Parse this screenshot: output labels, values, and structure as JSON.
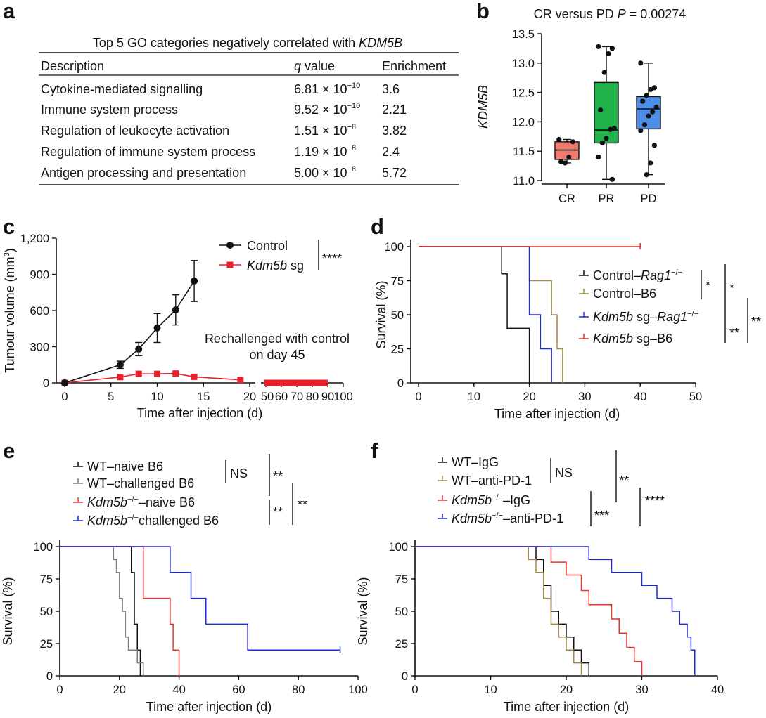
{
  "panel_labels": [
    "a",
    "b",
    "c",
    "d",
    "e",
    "f"
  ],
  "table": {
    "title_prefix": "Top 5 GO categories negatively correlated with ",
    "title_gene": "KDM5B",
    "headers": {
      "description": "Description",
      "q_italic": "q",
      "q_rest": " value",
      "enrichment": "Enrichment"
    },
    "times": "× 10",
    "rows": [
      {
        "description": "Cytokine-mediated signalling",
        "q_mant": "6.81",
        "q_exp": "−10",
        "enrichment": "3.6"
      },
      {
        "description": "Immune system process",
        "q_mant": "9.52",
        "q_exp": "−10",
        "enrichment": "2.21"
      },
      {
        "description": "Regulation of leukocyte activation",
        "q_mant": "1.51",
        "q_exp": "−8",
        "enrichment": "3.82"
      },
      {
        "description": "Regulation of immune system process",
        "q_mant": "1.19",
        "q_exp": "−8",
        "enrichment": "2.4"
      },
      {
        "description": "Antigen processing and presentation",
        "q_mant": "5.00",
        "q_exp": "−8",
        "enrichment": "5.72"
      }
    ]
  },
  "chart_data": [
    {
      "panel": "b",
      "type": "box",
      "title_prefix": "CR versus PD ",
      "title_p": "P",
      "title_suffix": " = 0.00274",
      "ylabel": "KDM5B",
      "ylim": [
        11.0,
        13.5
      ],
      "yticks": [
        "11.0",
        "11.5",
        "12.0",
        "12.5",
        "13.0",
        "13.5"
      ],
      "ytick_values": [
        11.0,
        11.5,
        12.0,
        12.5,
        13.0,
        13.5
      ],
      "categories": [
        "CR",
        "PR",
        "PD"
      ],
      "colors": [
        "#f07a6e",
        "#22b34a",
        "#4d8fe8"
      ],
      "boxes": [
        {
          "min": 11.3,
          "q1": 11.36,
          "median": 11.52,
          "q3": 11.66,
          "max": 11.7
        },
        {
          "min": 11.02,
          "q1": 11.64,
          "median": 11.86,
          "q3": 12.67,
          "max": 13.28
        },
        {
          "min": 11.1,
          "q1": 11.88,
          "median": 12.22,
          "q3": 12.43,
          "max": 13.0
        }
      ],
      "points": [
        [
          11.7,
          11.66,
          11.4,
          11.3,
          11.32
        ],
        [
          13.28,
          13.25,
          13.16,
          12.84,
          12.2,
          11.89,
          11.87,
          11.72,
          11.64,
          11.4,
          11.02
        ],
        [
          13.0,
          12.58,
          12.55,
          12.45,
          12.35,
          12.25,
          12.17,
          12.1,
          11.95,
          11.85,
          11.6,
          11.3,
          11.1
        ]
      ]
    },
    {
      "panel": "c",
      "type": "line",
      "ylabel_text": "Tumour volume (mm",
      "ylabel_sup": "3",
      "xlabel": "Time after injection (d)",
      "ylim": [
        0,
        1200
      ],
      "yticks": [
        "0",
        "300",
        "600",
        "900",
        "1,200"
      ],
      "ytick_values": [
        0,
        300,
        600,
        900,
        1200
      ],
      "xticks_left": [
        "0",
        "5",
        "10",
        "15",
        "20"
      ],
      "xticks_left_values": [
        0,
        5,
        10,
        15,
        20
      ],
      "xticks_right": [
        "50",
        "60",
        "70",
        "80",
        "90",
        "100"
      ],
      "xticks_right_values": [
        50,
        60,
        70,
        80,
        90,
        100
      ],
      "series": [
        {
          "name": "Control",
          "x": [
            0,
            6,
            8,
            10,
            12,
            14
          ],
          "values": [
            0,
            150,
            280,
            455,
            605,
            845
          ],
          "errors": [
            0,
            30,
            55,
            120,
            125,
            170
          ]
        },
        {
          "name_italic": "Kdm5b",
          "name_rest": " sg",
          "x": [
            0,
            6,
            8,
            10,
            12,
            14,
            19,
            51,
            53,
            55,
            57,
            59,
            62,
            64,
            66,
            68,
            70,
            72,
            75,
            78,
            80,
            84,
            86,
            88
          ],
          "values": [
            0,
            48,
            75,
            75,
            78,
            50,
            25,
            0,
            0,
            0,
            0,
            0,
            0,
            0,
            0,
            0,
            0,
            0,
            0,
            0,
            0,
            0,
            0,
            0
          ]
        }
      ],
      "significance": "****",
      "annotation_line1": "Rechallenged with control",
      "annotation_line2": "on day 45"
    },
    {
      "panel": "d",
      "type": "survival",
      "ylabel": "Survival (%)",
      "xlabel": "Time after injection (d)",
      "xlim": [
        0,
        50
      ],
      "ylim": [
        0,
        100
      ],
      "xticks": [
        "0",
        "10",
        "20",
        "30",
        "40",
        "50"
      ],
      "xtick_values": [
        0,
        10,
        20,
        30,
        40,
        50
      ],
      "yticks": [
        "0",
        "25",
        "50",
        "75",
        "100"
      ],
      "ytick_values": [
        0,
        25,
        50,
        75,
        100
      ],
      "series": [
        {
          "name_parts": [
            [
              "Control–",
              false
            ],
            [
              "Rag1",
              true
            ],
            [
              "−/−",
              false,
              "sup"
            ]
          ],
          "color": "#111111",
          "steps": [
            [
              0,
              100
            ],
            [
              15,
              80
            ],
            [
              16,
              40
            ],
            [
              20,
              0
            ]
          ]
        },
        {
          "name_parts": [
            [
              "Control–B6",
              false
            ]
          ],
          "color": "#a08a45",
          "steps": [
            [
              0,
              100
            ],
            [
              20,
              75
            ],
            [
              24,
              50
            ],
            [
              25,
              25
            ],
            [
              26,
              0
            ]
          ]
        },
        {
          "name_parts": [
            [
              "Kdm5b",
              true
            ],
            [
              " sg–",
              false
            ],
            [
              "Rag1",
              true
            ],
            [
              "−/−",
              false,
              "sup"
            ]
          ],
          "color": "#1f2ad8",
          "steps": [
            [
              0,
              100
            ],
            [
              20,
              50
            ],
            [
              22,
              25
            ],
            [
              24,
              0
            ]
          ]
        },
        {
          "name_parts": [
            [
              "Kdm5b",
              true
            ],
            [
              " sg–B6",
              false
            ]
          ],
          "color": "#e8322a",
          "steps": [
            [
              0,
              100
            ],
            [
              40,
              100
            ]
          ]
        }
      ],
      "significance": [
        "*",
        "*",
        "**",
        "**"
      ]
    },
    {
      "panel": "e",
      "type": "survival",
      "ylabel": "Survival (%)",
      "xlabel": "Time after injection (d)",
      "xlim": [
        0,
        100
      ],
      "ylim": [
        0,
        100
      ],
      "xticks": [
        "0",
        "20",
        "40",
        "60",
        "80",
        "100"
      ],
      "xtick_values": [
        0,
        20,
        40,
        60,
        80,
        100
      ],
      "yticks": [
        "0",
        "25",
        "50",
        "75",
        "100"
      ],
      "ytick_values": [
        0,
        25,
        50,
        75,
        100
      ],
      "series": [
        {
          "name_parts": [
            [
              "WT–naive B6",
              false
            ]
          ],
          "color": "#111111",
          "steps": [
            [
              0,
              100
            ],
            [
              24,
              80
            ],
            [
              25,
              40
            ],
            [
              26,
              20
            ],
            [
              27,
              0
            ]
          ]
        },
        {
          "name_parts": [
            [
              "WT–challenged B6",
              false
            ]
          ],
          "color": "#7d7d7d",
          "steps": [
            [
              0,
              100
            ],
            [
              18,
              90
            ],
            [
              19,
              80
            ],
            [
              20,
              60
            ],
            [
              21,
              50
            ],
            [
              22,
              30
            ],
            [
              23,
              20
            ],
            [
              26,
              10
            ],
            [
              28,
              0
            ]
          ]
        },
        {
          "name_parts": [
            [
              "Kdm5b",
              true
            ],
            [
              "−/−",
              false,
              "sup"
            ],
            [
              "–naive B6",
              false
            ]
          ],
          "color": "#e8322a",
          "steps": [
            [
              0,
              100
            ],
            [
              28,
              60
            ],
            [
              37,
              40
            ],
            [
              38,
              20
            ],
            [
              40,
              0
            ]
          ]
        },
        {
          "name_parts": [
            [
              "Kdm5b",
              true
            ],
            [
              "−/−",
              false,
              "sup"
            ],
            [
              "challenged B6",
              false
            ]
          ],
          "color": "#1f2ad8",
          "steps": [
            [
              0,
              100
            ],
            [
              37,
              80
            ],
            [
              44,
              60
            ],
            [
              49,
              40
            ],
            [
              63,
              20
            ],
            [
              94,
              20
            ]
          ]
        }
      ],
      "significance": [
        "NS",
        "**",
        "**",
        "**"
      ]
    },
    {
      "panel": "f",
      "type": "survival",
      "ylabel": "Survival (%)",
      "xlabel": "Time after injection (d)",
      "xlim": [
        0,
        40
      ],
      "ylim": [
        0,
        100
      ],
      "xticks": [
        "0",
        "10",
        "20",
        "30",
        "40"
      ],
      "xtick_values": [
        0,
        10,
        20,
        30,
        40
      ],
      "yticks": [
        "0",
        "25",
        "50",
        "75",
        "100"
      ],
      "ytick_values": [
        0,
        25,
        50,
        75,
        100
      ],
      "series": [
        {
          "name_parts": [
            [
              "WT–IgG",
              false
            ]
          ],
          "color": "#111111",
          "steps": [
            [
              0,
              100
            ],
            [
              16,
              90
            ],
            [
              17,
              70
            ],
            [
              18,
              50
            ],
            [
              19,
              40
            ],
            [
              20,
              30
            ],
            [
              21,
              20
            ],
            [
              22,
              10
            ],
            [
              23,
              0
            ]
          ]
        },
        {
          "name_parts": [
            [
              "WT–anti-PD-1",
              false
            ]
          ],
          "color": "#a08a45",
          "steps": [
            [
              0,
              100
            ],
            [
              15,
              90
            ],
            [
              16,
              80
            ],
            [
              17,
              60
            ],
            [
              18,
              40
            ],
            [
              19,
              30
            ],
            [
              20,
              20
            ],
            [
              21,
              10
            ],
            [
              22,
              0
            ]
          ]
        },
        {
          "name_parts": [
            [
              "Kdm5b",
              true
            ],
            [
              "−/−",
              false,
              "sup"
            ],
            [
              "–IgG",
              false
            ]
          ],
          "color": "#e8322a",
          "steps": [
            [
              0,
              100
            ],
            [
              18,
              88
            ],
            [
              20,
              78
            ],
            [
              22,
              66
            ],
            [
              23,
              55
            ],
            [
              26,
              44
            ],
            [
              27,
              33
            ],
            [
              28,
              22
            ],
            [
              29,
              11
            ],
            [
              30,
              0
            ]
          ]
        },
        {
          "name_parts": [
            [
              "Kdm5b",
              true
            ],
            [
              "−/−",
              false,
              "sup"
            ],
            [
              "–anti-PD-1",
              false
            ]
          ],
          "color": "#1f2ad8",
          "steps": [
            [
              0,
              100
            ],
            [
              23,
              90
            ],
            [
              26,
              80
            ],
            [
              30,
              70
            ],
            [
              32,
              60
            ],
            [
              34,
              50
            ],
            [
              35,
              40
            ],
            [
              36,
              30
            ],
            [
              36.5,
              20
            ],
            [
              37,
              0
            ]
          ]
        }
      ],
      "significance": [
        "NS",
        "**",
        "***",
        "****"
      ]
    }
  ]
}
